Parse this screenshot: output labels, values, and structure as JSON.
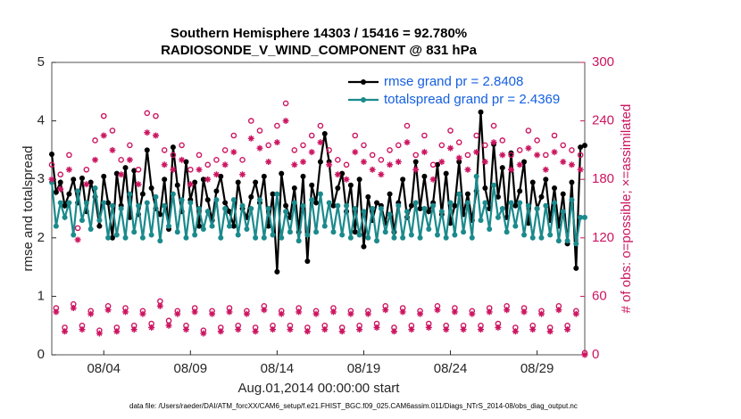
{
  "chart_data": {
    "type": "line",
    "title": "Southern Hemisphere 14303 / 15416 = 92.780%",
    "subtitle": "RADIOSONDE_V_WIND_COMPONENT @ 831 hPa",
    "xlabel": "Aug.01,2014 00:00:00 start",
    "ylabel": "rmse and totalspread",
    "y2label": "# of obs: o=possible; ×=assimilated",
    "footnote": "data file: /Users/raeder/DAI/ATM_forcXX/CAM6_setup/f.e21.FHIST_BGC.f09_025.CAM6assim.011/Diags_NTrS_2014-08/obs_diag_output.nc",
    "legend": "upper right",
    "xlim": [
      1,
      31.75
    ],
    "xticks": [
      {
        "value": 4,
        "label": "08/04"
      },
      {
        "value": 9,
        "label": "08/09"
      },
      {
        "value": 14,
        "label": "08/14"
      },
      {
        "value": 19,
        "label": "08/19"
      },
      {
        "value": 24,
        "label": "08/24"
      },
      {
        "value": 29,
        "label": "08/29"
      }
    ],
    "ylim": [
      0,
      5
    ],
    "yticks": [
      0,
      1,
      2,
      3,
      4,
      5
    ],
    "y2lim": [
      0,
      300
    ],
    "y2ticks": [
      0,
      60,
      120,
      180,
      240,
      300
    ],
    "x": [
      1,
      1.25,
      1.5,
      1.75,
      2,
      2.25,
      2.5,
      2.75,
      3,
      3.25,
      3.5,
      3.75,
      4,
      4.25,
      4.5,
      4.75,
      5,
      5.25,
      5.5,
      5.75,
      6,
      6.25,
      6.5,
      6.75,
      7,
      7.25,
      7.5,
      7.75,
      8,
      8.25,
      8.5,
      8.75,
      9,
      9.25,
      9.5,
      9.75,
      10,
      10.25,
      10.5,
      10.75,
      11,
      11.25,
      11.5,
      11.75,
      12,
      12.25,
      12.5,
      12.75,
      13,
      13.25,
      13.5,
      13.75,
      14,
      14.25,
      14.5,
      14.75,
      15,
      15.25,
      15.5,
      15.75,
      16,
      16.25,
      16.5,
      16.75,
      17,
      17.25,
      17.5,
      17.75,
      18,
      18.25,
      18.5,
      18.75,
      19,
      19.25,
      19.5,
      19.75,
      20,
      20.25,
      20.5,
      20.75,
      21,
      21.25,
      21.5,
      21.75,
      22,
      22.25,
      22.5,
      22.75,
      23,
      23.25,
      23.5,
      23.75,
      24,
      24.25,
      24.5,
      24.75,
      25,
      25.25,
      25.5,
      25.75,
      26,
      26.25,
      26.5,
      26.75,
      27,
      27.25,
      27.5,
      27.75,
      28,
      28.25,
      28.5,
      28.75,
      29,
      29.25,
      29.5,
      29.75,
      30,
      30.25,
      30.5,
      30.75,
      31,
      31.25,
      31.5,
      31.75
    ],
    "series": [
      {
        "name": "rmse grand pr = 2.8408",
        "color": "#000000",
        "marker": "dot",
        "values": [
          3.43,
          2.78,
          2.95,
          2.55,
          2.75,
          3.0,
          2.6,
          3.02,
          2.45,
          2.95,
          2.7,
          2.2,
          3.05,
          2.6,
          2.0,
          3.1,
          2.55,
          3.2,
          2.35,
          3.15,
          2.4,
          2.75,
          3.5,
          2.85,
          2.5,
          2.4,
          3.0,
          2.15,
          3.55,
          2.9,
          2.45,
          3.3,
          2.65,
          2.95,
          2.2,
          3.0,
          2.65,
          2.3,
          2.8,
          3.05,
          2.6,
          2.45,
          2.2,
          2.95,
          2.5,
          2.35,
          2.7,
          2.95,
          2.6,
          3.05,
          2.2,
          2.75,
          1.42,
          3.1,
          2.55,
          2.35,
          2.85,
          2.1,
          3.05,
          1.6,
          2.9,
          2.6,
          3.3,
          3.78,
          3.3,
          2.55,
          2.85,
          3.1,
          2.45,
          2.9,
          2.1,
          3.0,
          1.85,
          2.7,
          2.3,
          2.6,
          2.55,
          2.25,
          2.75,
          2.1,
          2.6,
          3.0,
          2.35,
          2.55,
          3.3,
          2.5,
          3.05,
          2.45,
          2.6,
          3.25,
          2.4,
          3.1,
          2.25,
          2.55,
          3.3,
          2.4,
          2.75,
          2.3,
          2.8,
          4.15,
          2.85,
          2.5,
          3.6,
          2.7,
          3.2,
          2.35,
          3.45,
          2.55,
          2.8,
          3.3,
          2.25,
          2.95,
          2.5,
          2.7,
          3.0,
          2.3,
          2.85,
          2.2,
          2.75,
          1.9,
          2.95,
          1.48,
          3.55,
          3.58
        ]
      },
      {
        "name": "totalspread grand pr = 2.4369",
        "color": "#1b8a8c",
        "marker": "dot",
        "values": [
          2.95,
          2.2,
          2.6,
          2.35,
          2.6,
          2.05,
          2.8,
          2.3,
          2.6,
          2.15,
          2.85,
          2.3,
          2.6,
          2.0,
          2.55,
          2.05,
          2.5,
          2.0,
          2.75,
          2.1,
          2.55,
          2.0,
          2.6,
          2.05,
          2.7,
          1.95,
          2.55,
          2.2,
          2.75,
          2.1,
          2.65,
          2.0,
          2.6,
          2.05,
          2.5,
          2.15,
          2.45,
          2.2,
          2.65,
          2.0,
          2.5,
          2.2,
          2.65,
          2.05,
          2.55,
          2.15,
          2.5,
          2.0,
          2.65,
          2.0,
          2.5,
          2.05,
          2.75,
          2.0,
          2.45,
          2.1,
          2.6,
          1.95,
          2.55,
          2.05,
          2.65,
          2.1,
          2.75,
          2.2,
          2.6,
          2.1,
          2.55,
          2.05,
          2.55,
          2.0,
          2.5,
          2.05,
          2.45,
          2.0,
          2.5,
          1.95,
          2.5,
          2.1,
          2.4,
          2.0,
          2.55,
          2.0,
          2.45,
          2.05,
          2.6,
          2.0,
          2.5,
          2.15,
          2.55,
          2.05,
          2.45,
          2.0,
          2.6,
          2.05,
          2.75,
          2.1,
          2.6,
          2.0,
          3.05,
          2.3,
          2.6,
          2.15,
          2.9,
          2.35,
          2.5,
          2.1,
          2.6,
          2.2,
          2.6,
          2.05,
          2.55,
          2.0,
          2.5,
          2.0,
          2.55,
          2.05,
          2.6,
          1.95,
          2.45,
          1.95,
          2.65,
          1.9,
          2.35,
          2.35
        ]
      },
      {
        "name": "possible",
        "color": "#cc1560",
        "marker": "o",
        "axis": "y2",
        "values": [
          195,
          48,
          185,
          28,
          205,
          52,
          130,
          30,
          190,
          45,
          220,
          25,
          245,
          50,
          230,
          28,
          200,
          48,
          215,
          30,
          190,
          45,
          248,
          32,
          245,
          55,
          210,
          35,
          205,
          45,
          215,
          30,
          190,
          48,
          205,
          25,
          195,
          45,
          200,
          28,
          210,
          48,
          225,
          30,
          200,
          45,
          240,
          28,
          230,
          50,
          215,
          30,
          235,
          45,
          258,
          30,
          210,
          48,
          215,
          28,
          225,
          45,
          235,
          30,
          210,
          48,
          200,
          28,
          195,
          45,
          225,
          30,
          215,
          45,
          205,
          32,
          200,
          50,
          210,
          28,
          215,
          48,
          235,
          30,
          205,
          45,
          225,
          32,
          195,
          50,
          215,
          30,
          230,
          48,
          218,
          30,
          205,
          45,
          225,
          30,
          215,
          48,
          235,
          32,
          220,
          50,
          205,
          28,
          210,
          48,
          230,
          30,
          220,
          45,
          205,
          28,
          225,
          50,
          215,
          30,
          210,
          45,
          205,
          2
        ]
      },
      {
        "name": "assimilated",
        "color": "#cc1560",
        "marker": "*",
        "axis": "y2",
        "values": [
          180,
          44,
          170,
          24,
          190,
          48,
          118,
          26,
          175,
          42,
          200,
          22,
          225,
          46,
          210,
          24,
          185,
          44,
          200,
          26,
          175,
          42,
          228,
          28,
          225,
          50,
          195,
          30,
          190,
          42,
          200,
          26,
          175,
          44,
          190,
          22,
          180,
          42,
          185,
          24,
          195,
          44,
          208,
          26,
          185,
          42,
          222,
          24,
          212,
          46,
          198,
          26,
          218,
          42,
          240,
          26,
          195,
          44,
          198,
          24,
          208,
          42,
          218,
          26,
          195,
          44,
          185,
          24,
          180,
          42,
          208,
          26,
          198,
          42,
          190,
          28,
          185,
          46,
          195,
          24,
          198,
          44,
          218,
          26,
          190,
          42,
          208,
          28,
          180,
          46,
          198,
          26,
          212,
          44,
          202,
          26,
          190,
          42,
          208,
          26,
          198,
          44,
          218,
          28,
          205,
          46,
          190,
          24,
          195,
          44,
          212,
          26,
          205,
          42,
          190,
          24,
          208,
          46,
          198,
          26,
          195,
          42,
          190,
          0
        ]
      }
    ]
  }
}
